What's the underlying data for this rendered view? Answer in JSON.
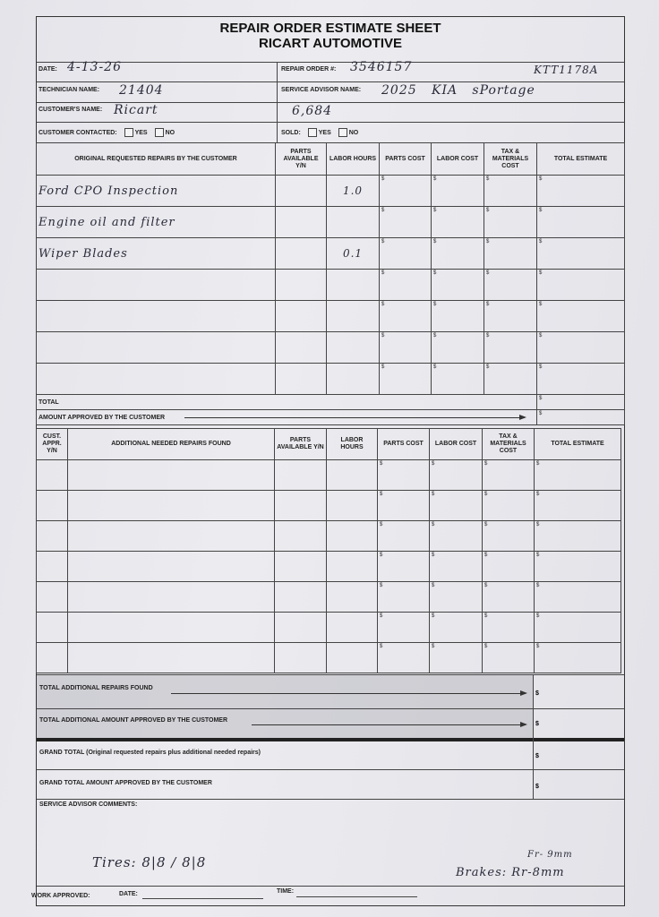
{
  "header": {
    "title": "REPAIR ORDER ESTIMATE SHEET",
    "company": "RICART AUTOMOTIVE"
  },
  "fields": {
    "date_label": "DATE:",
    "date_value": "4-13-26",
    "repair_order_label": "REPAIR ORDER #:",
    "repair_order_value": "3546157",
    "tag_value": "KTT1178A",
    "technician_label": "TECHNICIAN NAME:",
    "technician_value": "21404",
    "service_advisor_label": "SERVICE ADVISOR NAME:",
    "service_advisor_value": "2025   KIA   sPortage",
    "customer_label": "CUSTOMER'S NAME:",
    "customer_value": "Ricart",
    "mileage_value": "6,684",
    "contacted_label": "CUSTOMER CONTACTED:",
    "yes": "YES",
    "no": "NO",
    "sold_label": "SOLD:"
  },
  "original": {
    "headers": [
      "ORIGINAL REQUESTED REPAIRS BY THE CUSTOMER",
      "PARTS AVAILABLE Y/N",
      "LABOR HOURS",
      "PARTS COST",
      "LABOR COST",
      "TAX & MATERIALS COST",
      "TOTAL ESTIMATE"
    ],
    "rows": [
      {
        "desc": "Ford CPO Inspection",
        "hours": "1.0"
      },
      {
        "desc": "Engine oil and filter",
        "hours": ""
      },
      {
        "desc": "Wiper Blades",
        "hours": "0.1"
      },
      {
        "desc": "",
        "hours": ""
      },
      {
        "desc": "",
        "hours": ""
      },
      {
        "desc": "",
        "hours": ""
      },
      {
        "desc": "",
        "hours": ""
      }
    ],
    "currency": "$",
    "total_label": "TOTAL",
    "approved_label": "AMOUNT APPROVED BY THE CUSTOMER"
  },
  "additional": {
    "headers": [
      "CUST. APPR. Y/N",
      "ADDITIONAL NEEDED REPAIRS FOUND",
      "PARTS AVAILABLE Y/N",
      "LABOR HOURS",
      "PARTS COST",
      "LABOR COST",
      "TAX & MATERIALS COST",
      "TOTAL ESTIMATE"
    ],
    "row_count": 7,
    "total_label": "TOTAL ADDITIONAL REPAIRS FOUND",
    "approved_label": "TOTAL ADDITIONAL AMOUNT APPROVED BY THE CUSTOMER"
  },
  "grand": {
    "total_label": "GRAND TOTAL (Original requested repairs plus additional needed repairs)",
    "approved_label": "GRAND TOTAL AMOUNT APPROVED BY THE CUSTOMER"
  },
  "comments": {
    "label": "SERVICE ADVISOR COMMENTS:",
    "tires": "Tires: 8|8 / 8|8",
    "brakes_front": "Fr- 9mm",
    "brakes_rear": "Brakes: Rr-8mm"
  },
  "footer": {
    "work_approved": "WORK APPROVED:",
    "date": "DATE:",
    "time": "TIME:"
  }
}
